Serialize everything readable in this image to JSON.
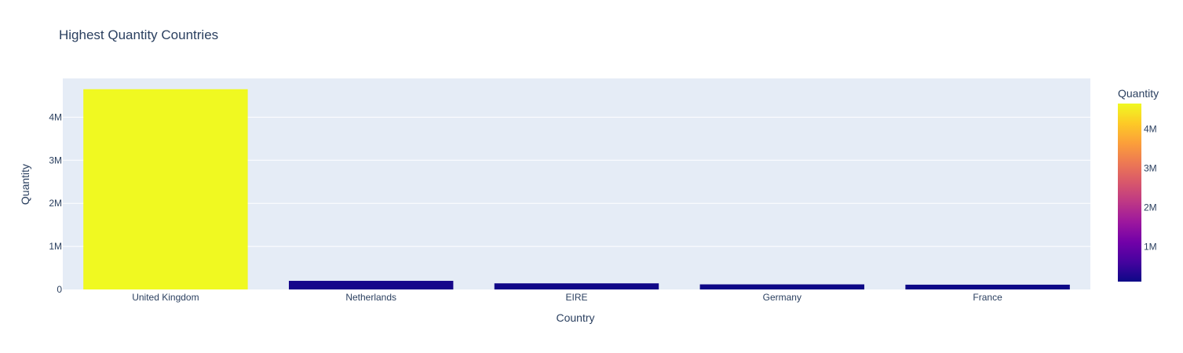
{
  "chart_data": {
    "type": "bar",
    "title": "Highest Quantity Countries",
    "xlabel": "Country",
    "ylabel": "Quantity",
    "categories": [
      "United Kingdom",
      "Netherlands",
      "EIRE",
      "Germany",
      "France"
    ],
    "values": [
      4650000,
      200000,
      142000,
      118000,
      111000
    ],
    "ylim": [
      0,
      4900000
    ],
    "yticks": [
      0,
      1000000,
      2000000,
      3000000,
      4000000
    ],
    "ytick_labels": [
      "0",
      "1M",
      "2M",
      "3M",
      "4M"
    ],
    "grid": true,
    "colorbar": {
      "title": "Quantity",
      "range": [
        111000,
        4650000
      ],
      "ticks": [
        1000000,
        2000000,
        3000000,
        4000000
      ],
      "tick_labels": [
        "1M",
        "2M",
        "3M",
        "4M"
      ],
      "colorscale": [
        "#0d0887",
        "#46039f",
        "#7201a8",
        "#9c179e",
        "#bd3786",
        "#d8576b",
        "#ed7953",
        "#fb9f3a",
        "#fdca26",
        "#f0f921"
      ]
    },
    "colors": {
      "plot_bg": "#e5ecf6",
      "grid": "#ffffff",
      "text": "#2a3f5f"
    }
  }
}
